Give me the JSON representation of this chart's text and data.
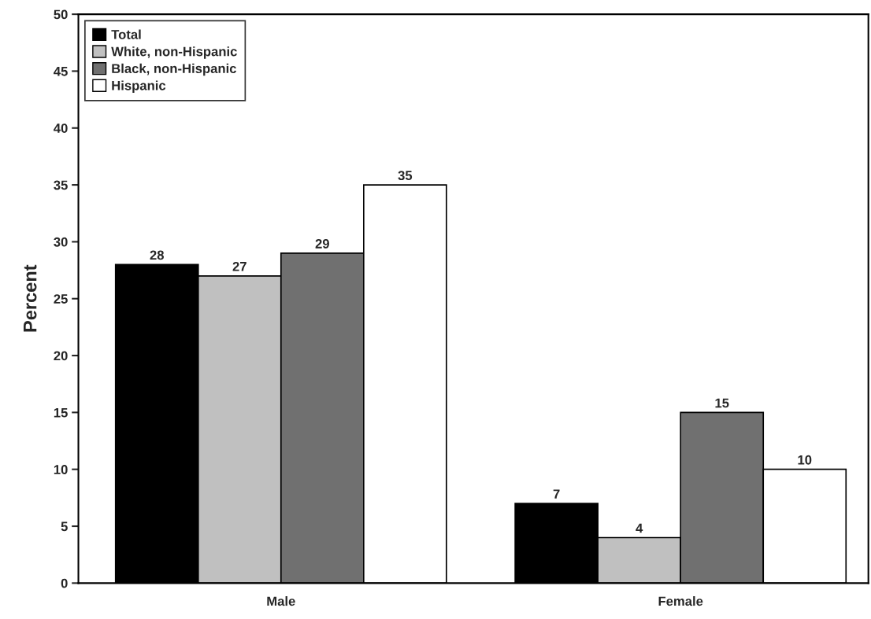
{
  "chart_data": {
    "type": "bar",
    "ylabel": "Percent",
    "categories": [
      "Male",
      "Female"
    ],
    "series": [
      {
        "name": "Total",
        "color": "#000000",
        "values": [
          28,
          7
        ]
      },
      {
        "name": "White, non-Hispanic",
        "color": "#c0c0c0",
        "values": [
          27,
          4
        ]
      },
      {
        "name": "Black, non-Hispanic",
        "color": "#707070",
        "values": [
          29,
          15
        ]
      },
      {
        "name": "Hispanic",
        "color": "#ffffff",
        "values": [
          35,
          10
        ]
      }
    ],
    "ylim": [
      0,
      50
    ],
    "yticks": [
      0,
      5,
      10,
      15,
      20,
      25,
      30,
      35,
      40,
      45,
      50
    ],
    "data_labels": true,
    "grid": false,
    "legend": "top left"
  }
}
